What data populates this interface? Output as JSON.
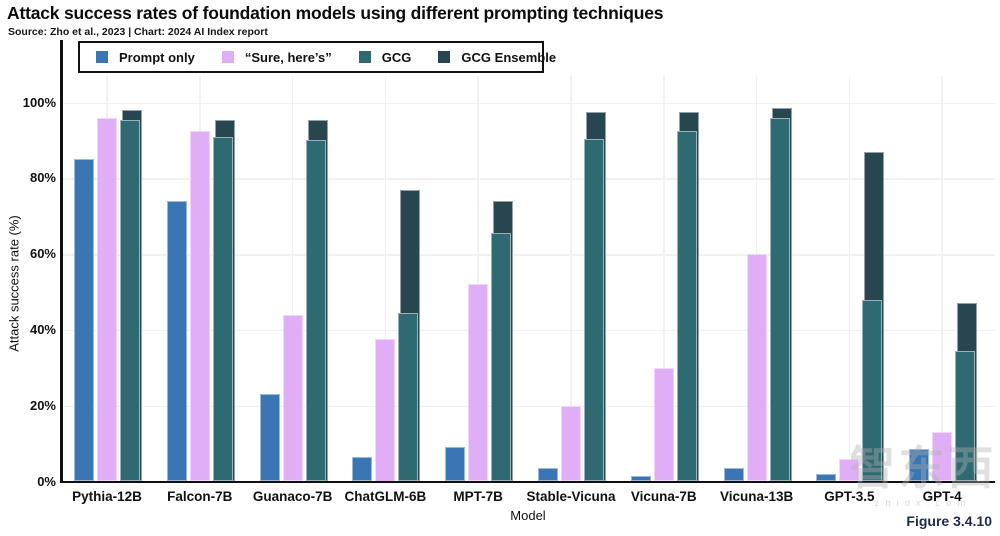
{
  "header": {
    "title": "Attack success rates of foundation models using different prompting techniques",
    "source": "Source: Zho et al., 2023 | Chart: 2024 AI Index report"
  },
  "figure_label": "Figure 3.4.10",
  "watermark": {
    "text": "智东西",
    "domain": "zhidx.com"
  },
  "chart_data": {
    "type": "bar",
    "title": "Attack success rates of foundation models using different prompting techniques",
    "xlabel": "Model",
    "ylabel": "Attack success rate (%)",
    "ylim": [
      0,
      110
    ],
    "ytick_labels": [
      "0%",
      "20%",
      "40%",
      "60%",
      "80%",
      "100%"
    ],
    "ytick_values": [
      0,
      20,
      40,
      60,
      80,
      100
    ],
    "grid": true,
    "legend_position": "top-left boxed",
    "categories": [
      "Pythia-12B",
      "Falcon-7B",
      "Guanaco-7B",
      "ChatGLM-6B",
      "MPT-7B",
      "Stable-Vicuna",
      "Vicuna-7B",
      "Vicuna-13B",
      "GPT-3.5",
      "GPT-4"
    ],
    "series": [
      {
        "name": "Prompt only",
        "color": "#3a75b4",
        "values": [
          85,
          74,
          23,
          6.5,
          9,
          3.5,
          1.5,
          3.5,
          2,
          8.5
        ]
      },
      {
        "name": "“Sure, here’s”",
        "color": "#e0aef6",
        "values": [
          96,
          92.5,
          44,
          37.5,
          52,
          20,
          30,
          60,
          6,
          13
        ]
      },
      {
        "name": "GCG",
        "color": "#2f6a73",
        "values": [
          95.5,
          91,
          90,
          44.5,
          65.5,
          90.5,
          92.5,
          96,
          48,
          34.5
        ]
      },
      {
        "name": "GCG Ensemble",
        "color": "#28464f",
        "values": [
          98,
          95.5,
          95.5,
          77,
          74,
          97.5,
          97.5,
          98.5,
          87,
          47
        ]
      }
    ]
  }
}
